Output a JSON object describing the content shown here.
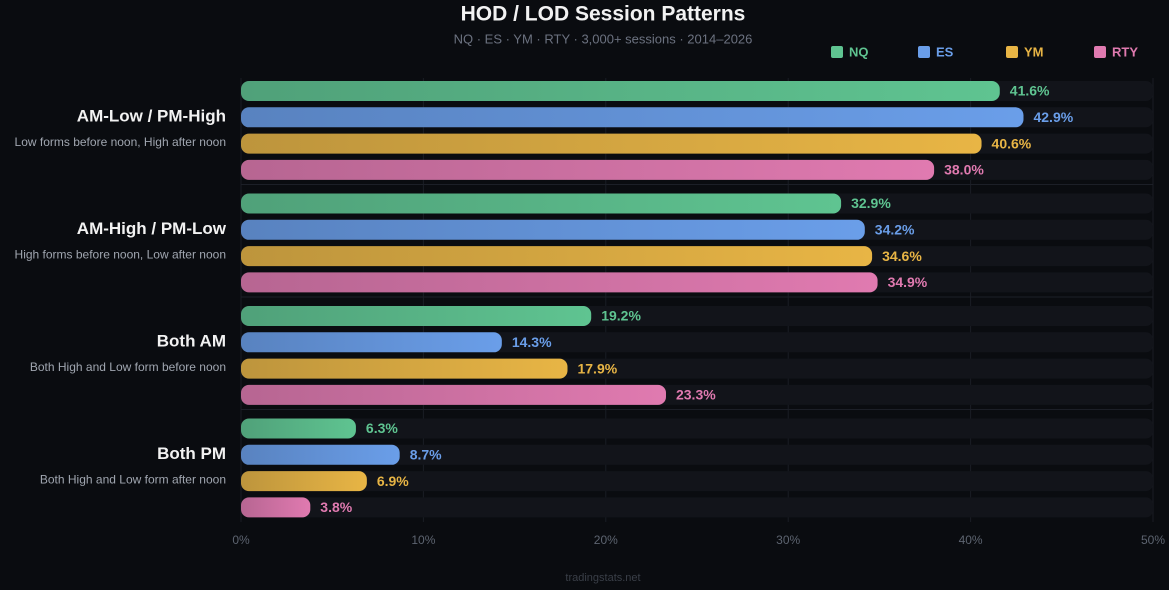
{
  "chart_data": {
    "type": "grouped-hbar",
    "title": "HOD / LOD Session Patterns",
    "subtitle": "NQ · ES · YM · RTY · 3,000+ sessions · 2014–2026",
    "categories": [
      "AM-Low / PM-High",
      "AM-High / PM-Low",
      "Both AM",
      "Both PM"
    ],
    "category_descriptions": [
      "Low forms before noon, High after noon",
      "High forms before noon, Low after noon",
      "Both High and Low form before noon",
      "Both High and Low form after noon"
    ],
    "series": [
      {
        "name": "NQ",
        "color": "#5fc491",
        "values": [
          41.6,
          32.9,
          19.2,
          6.3
        ],
        "value_labels": [
          "41.6%",
          "32.9%",
          "19.2%",
          "6.3%"
        ]
      },
      {
        "name": "ES",
        "color": "#6a9ee9",
        "values": [
          42.9,
          34.2,
          14.3,
          8.7
        ],
        "value_labels": [
          "42.9%",
          "34.2%",
          "14.3%",
          "8.7%"
        ]
      },
      {
        "name": "YM",
        "color": "#e8b545",
        "values": [
          40.6,
          34.6,
          17.9,
          6.9
        ],
        "value_labels": [
          "40.6%",
          "34.6%",
          "17.9%",
          "6.9%"
        ]
      },
      {
        "name": "RTY",
        "color": "#e07ab0",
        "values": [
          38.0,
          34.9,
          23.3,
          3.8
        ],
        "value_labels": [
          "38.0%",
          "34.9%",
          "23.3%",
          "3.8%"
        ]
      }
    ],
    "xlim": [
      0,
      50
    ],
    "xticks": [
      {
        "value": 0,
        "label": "0%"
      },
      {
        "value": 10,
        "label": "10%"
      },
      {
        "value": 20,
        "label": "20%"
      },
      {
        "value": 30,
        "label": "30%"
      },
      {
        "value": 40,
        "label": "40%"
      },
      {
        "value": 50,
        "label": "50%"
      }
    ],
    "grid": true,
    "legend": "top-right",
    "source": "tradingstats.net"
  }
}
